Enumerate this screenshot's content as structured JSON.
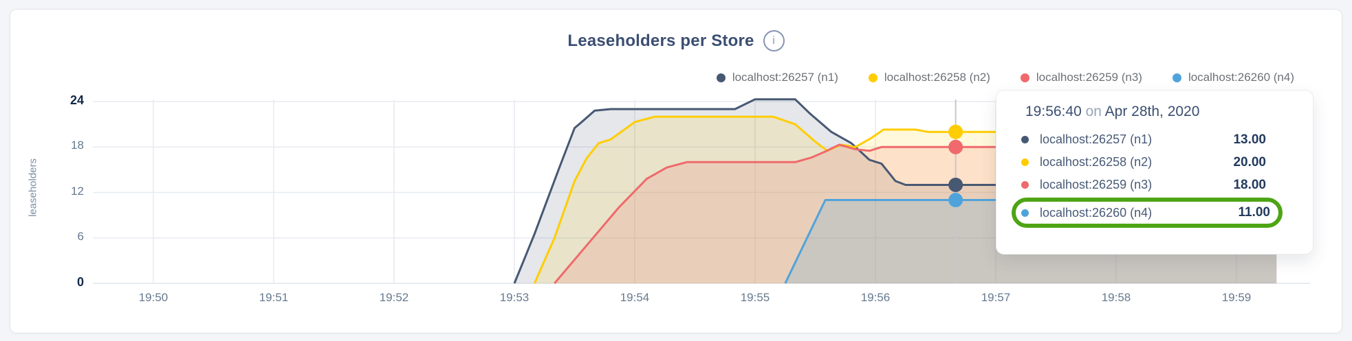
{
  "page": {
    "background": "#f3f5f8",
    "card_background": "#ffffff"
  },
  "header": {
    "info_icon_glyph": "i"
  },
  "chart_data": {
    "type": "area",
    "title": "Leaseholders per Store",
    "xlabel": "",
    "ylabel": "leaseholders",
    "ylim": [
      0,
      24
    ],
    "grid": true,
    "legend_position": "top-right",
    "x_tick_labels": [
      "19:50",
      "19:51",
      "19:52",
      "19:53",
      "19:54",
      "19:55",
      "19:56",
      "19:57",
      "19:58",
      "19:59"
    ],
    "y_ticks": [
      0,
      6,
      12,
      18,
      24
    ],
    "series": [
      {
        "name": "localhost:26257 (n1)",
        "color": "#475872",
        "fill": "rgba(71,88,114,0.14)",
        "points": [
          [
            "19:53:00",
            0
          ],
          [
            "19:53:10",
            6.5
          ],
          [
            "19:53:22",
            15
          ],
          [
            "19:53:30",
            20.5
          ],
          [
            "19:53:34",
            21.4
          ],
          [
            "19:53:40",
            22.8
          ],
          [
            "19:53:48",
            23
          ],
          [
            "19:54:50",
            23
          ],
          [
            "19:55:00",
            24.3
          ],
          [
            "19:55:20",
            24.3
          ],
          [
            "19:55:27",
            22.5
          ],
          [
            "19:55:38",
            20
          ],
          [
            "19:55:48",
            18.5
          ],
          [
            "19:55:57",
            16.3
          ],
          [
            "19:56:03",
            15.8
          ],
          [
            "19:56:10",
            13.5
          ],
          [
            "19:56:15",
            13
          ],
          [
            "19:59:20",
            13
          ]
        ]
      },
      {
        "name": "localhost:26258 (n2)",
        "color": "#ffcd02",
        "fill": "rgba(255,205,2,0.14)",
        "points": [
          [
            "19:53:10",
            0
          ],
          [
            "19:53:20",
            6
          ],
          [
            "19:53:30",
            13.5
          ],
          [
            "19:53:36",
            16.5
          ],
          [
            "19:53:42",
            18.5
          ],
          [
            "19:53:48",
            19
          ],
          [
            "19:54:00",
            21.3
          ],
          [
            "19:54:10",
            22
          ],
          [
            "19:55:09",
            22
          ],
          [
            "19:55:20",
            21
          ],
          [
            "19:55:30",
            18.7
          ],
          [
            "19:55:36",
            17.5
          ],
          [
            "19:55:43",
            18.3
          ],
          [
            "19:55:50",
            18
          ],
          [
            "19:55:58",
            19.2
          ],
          [
            "19:56:04",
            20.3
          ],
          [
            "19:56:20",
            20.3
          ],
          [
            "19:56:26",
            20
          ],
          [
            "19:59:20",
            20
          ]
        ]
      },
      {
        "name": "localhost:26259 (n3)",
        "color": "#f0696c",
        "fill": "rgba(240,105,108,0.16)",
        "points": [
          [
            "19:53:20",
            0
          ],
          [
            "19:53:36",
            5
          ],
          [
            "19:53:52",
            10
          ],
          [
            "19:54:06",
            13.8
          ],
          [
            "19:54:16",
            15.3
          ],
          [
            "19:54:26",
            16
          ],
          [
            "19:55:20",
            16
          ],
          [
            "19:55:28",
            16.6
          ],
          [
            "19:55:35",
            17.4
          ],
          [
            "19:55:42",
            18.3
          ],
          [
            "19:55:50",
            17.7
          ],
          [
            "19:55:57",
            17.5
          ],
          [
            "19:56:03",
            18
          ],
          [
            "19:59:20",
            18
          ]
        ]
      },
      {
        "name": "localhost:26260 (n4)",
        "color": "#4fa3db",
        "fill": "rgba(79,163,219,0.20)",
        "points": [
          [
            "19:55:15",
            0
          ],
          [
            "19:55:35",
            11
          ],
          [
            "19:59:20",
            11
          ]
        ]
      }
    ],
    "hover": {
      "time": "19:56:40",
      "values": [
        13,
        20,
        18,
        11
      ]
    }
  },
  "tooltip": {
    "time": "19:56:40",
    "conjunction": "on",
    "date": "Apr 28th, 2020",
    "highlight_color": "#4da414",
    "rows": [
      {
        "label": "localhost:26257 (n1)",
        "value": "13.00",
        "color": "#475872",
        "highlighted": false
      },
      {
        "label": "localhost:26258 (n2)",
        "value": "20.00",
        "color": "#ffcd02",
        "highlighted": false
      },
      {
        "label": "localhost:26259 (n3)",
        "value": "18.00",
        "color": "#f0696c",
        "highlighted": false
      },
      {
        "label": "localhost:26260 (n4)",
        "value": "11.00",
        "color": "#4fa3db",
        "highlighted": true
      }
    ]
  },
  "colors": {
    "grid": "#e7eaf0",
    "baseline": "#e2e6ec",
    "hover_line": "#c6c8cc",
    "title": "#3b4e72"
  }
}
